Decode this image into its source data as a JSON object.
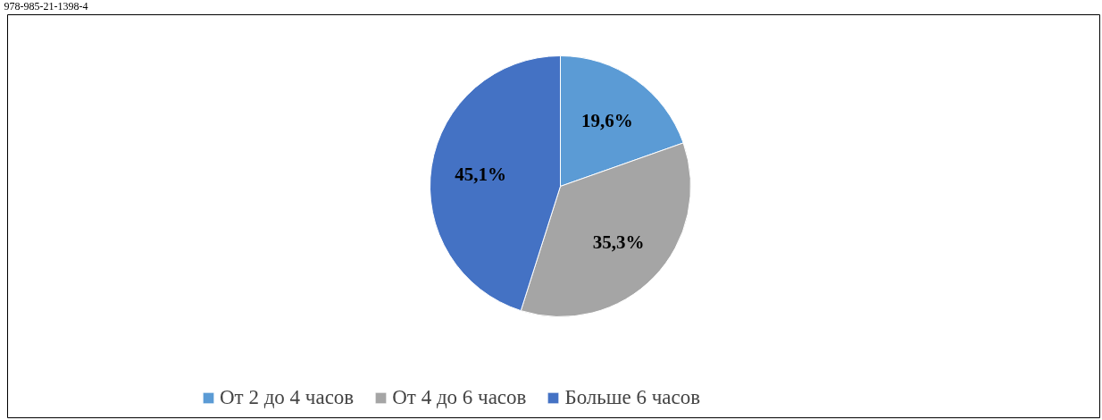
{
  "chart_data": {
    "type": "pie",
    "categories": [
      "От 2 до 4 часов",
      "От 4 до 6 часов",
      "Больше 6 часов"
    ],
    "values": [
      19.6,
      35.3,
      45.1
    ],
    "colors": [
      "#5b9bd5",
      "#a5a5a5",
      "#4472c4"
    ],
    "value_labels": [
      "19,6%",
      "35,3%",
      "45,1%"
    ],
    "legend": "bottom",
    "annotations": [
      "978-985-21-1398-4"
    ]
  }
}
